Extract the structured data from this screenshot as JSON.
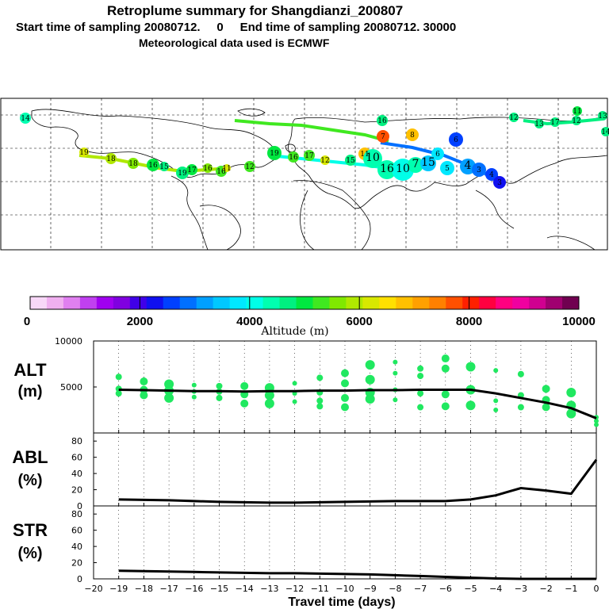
{
  "header": {
    "title": "Retroplume summary for Shangdianzi_200807",
    "sampling": "Start time of sampling 20080712.     0     End time of sampling 20080712. 30000",
    "met": "Meteorological data used is ECMWF"
  },
  "colorbar": {
    "ticks": [
      "0",
      "2000",
      "4000",
      "6000",
      "8000",
      "10000"
    ],
    "label": "Altitude (m)",
    "colors": [
      "#f8d8f8",
      "#f0b0f0",
      "#e080f0",
      "#c040f0",
      "#a000f0",
      "#8000e0",
      "#4000e8",
      "#1010f0",
      "#0040ff",
      "#0070ff",
      "#00a0ff",
      "#00c8ff",
      "#00e8ff",
      "#00ffe8",
      "#00ffb0",
      "#00f080",
      "#00e840",
      "#40e820",
      "#80e800",
      "#b0e800",
      "#d8e800",
      "#ffe000",
      "#ffc000",
      "#ffa000",
      "#ff8000",
      "#ff5000",
      "#ff2000",
      "#ff0040",
      "#ff0080",
      "#f000a0",
      "#d00090",
      "#a00070",
      "#700050"
    ]
  },
  "map": {
    "trajectory_labels": [
      "14",
      "19",
      "18",
      "18",
      "16",
      "15",
      "19",
      "17",
      "16",
      "16",
      "11",
      "12",
      "19",
      "16",
      "17",
      "12",
      "15",
      "11",
      "10",
      "16",
      "10",
      "7",
      "15",
      "6",
      "5",
      "6",
      "4",
      "3",
      "4",
      "3",
      "7",
      "8",
      "16",
      "11",
      "14",
      "12",
      "13",
      "17",
      "12",
      "13"
    ]
  },
  "chart_data": [
    {
      "type": "scatter",
      "name": "ALT",
      "ylabel": "ALT",
      "yunit": "(m)",
      "ylim": [
        0,
        10000
      ],
      "yticks": [
        "5000",
        "10000"
      ],
      "x": [
        -19,
        -18,
        -17,
        -16,
        -15,
        -14,
        -13,
        -12,
        -11,
        -10,
        -9,
        -8,
        -7,
        -6,
        -5,
        -4,
        -3,
        -2,
        -1,
        0
      ],
      "values": [
        4700,
        4650,
        4600,
        4550,
        4550,
        4500,
        4550,
        4550,
        4600,
        4600,
        4650,
        4650,
        4700,
        4700,
        4700,
        4300,
        3800,
        3300,
        2700,
        1600
      ],
      "points": [
        [
          -19,
          6100
        ],
        [
          -19,
          4800
        ],
        [
          -19,
          4300
        ],
        [
          -18,
          5600
        ],
        [
          -18,
          4700
        ],
        [
          -18,
          4100
        ],
        [
          -17,
          5300
        ],
        [
          -17,
          4600
        ],
        [
          -17,
          3800
        ],
        [
          -16,
          5200
        ],
        [
          -16,
          4500
        ],
        [
          -16,
          3900
        ],
        [
          -15,
          5100
        ],
        [
          -15,
          4500
        ],
        [
          -15,
          3800
        ],
        [
          -14,
          5100
        ],
        [
          -14,
          4200
        ],
        [
          -14,
          3200
        ],
        [
          -13,
          4900
        ],
        [
          -13,
          4100
        ],
        [
          -13,
          3200
        ],
        [
          -12,
          5400
        ],
        [
          -12,
          4300
        ],
        [
          -12,
          3400
        ],
        [
          -11,
          6000
        ],
        [
          -11,
          4400
        ],
        [
          -11,
          3500
        ],
        [
          -11,
          2900
        ],
        [
          -10,
          6500
        ],
        [
          -10,
          5400
        ],
        [
          -10,
          3800
        ],
        [
          -10,
          2800
        ],
        [
          -9,
          7400
        ],
        [
          -9,
          5800
        ],
        [
          -9,
          4400
        ],
        [
          -9,
          3700
        ],
        [
          -8,
          7700
        ],
        [
          -8,
          6500
        ],
        [
          -8,
          4700
        ],
        [
          -8,
          3600
        ],
        [
          -7,
          7000
        ],
        [
          -7,
          6200
        ],
        [
          -7,
          4300
        ],
        [
          -7,
          2800
        ],
        [
          -6,
          8100
        ],
        [
          -6,
          7000
        ],
        [
          -6,
          4200
        ],
        [
          -6,
          2900
        ],
        [
          -5,
          7200
        ],
        [
          -5,
          4700
        ],
        [
          -5,
          3000
        ],
        [
          -4,
          6800
        ],
        [
          -4,
          3500
        ],
        [
          -4,
          2500
        ],
        [
          -3,
          6400
        ],
        [
          -3,
          4100
        ],
        [
          -3,
          2800
        ],
        [
          -2,
          4800
        ],
        [
          -2,
          3600
        ],
        [
          -2,
          2800
        ],
        [
          -1,
          4400
        ],
        [
          -1,
          3000
        ],
        [
          -1,
          2100
        ],
        [
          0,
          1700
        ],
        [
          0,
          1300
        ],
        [
          0,
          900
        ]
      ]
    },
    {
      "type": "line",
      "name": "ABL",
      "ylabel": "ABL",
      "yunit": "(%)",
      "ylim": [
        0,
        90
      ],
      "yticks": [
        "0",
        "20",
        "40",
        "60",
        "80"
      ],
      "x": [
        -19,
        -18,
        -17,
        -16,
        -15,
        -14,
        -13,
        -12,
        -11,
        -10,
        -9,
        -8,
        -7,
        -6,
        -5,
        -4,
        -3,
        -2,
        -1,
        0
      ],
      "values": [
        8,
        7.5,
        7,
        6,
        5,
        4.5,
        4,
        4,
        4.5,
        5,
        5.5,
        6,
        6,
        6,
        8,
        13,
        22,
        19,
        15,
        57
      ]
    },
    {
      "type": "line",
      "name": "STR",
      "ylabel": "STR",
      "yunit": "(%)",
      "ylim": [
        0,
        90
      ],
      "yticks": [
        "0",
        "20",
        "40",
        "60",
        "80"
      ],
      "x": [
        -19,
        -18,
        -17,
        -16,
        -15,
        -14,
        -13,
        -12,
        -11,
        -10,
        -9,
        -8,
        -7,
        -6,
        -5,
        -4,
        -3,
        -2,
        -1,
        0
      ],
      "values": [
        10,
        9.5,
        9,
        8.5,
        8,
        7.5,
        7,
        7,
        6.5,
        6,
        5.5,
        4.5,
        3.5,
        2.5,
        1.5,
        0.5,
        0,
        0,
        0,
        0
      ],
      "xlabel": "Travel time (days)",
      "xticks": [
        "−20",
        "−19",
        "−18",
        "−17",
        "−16",
        "−15",
        "−14",
        "−13",
        "−12",
        "−11",
        "−10",
        "−9",
        "−8",
        "−7",
        "−6",
        "−5",
        "−4",
        "−3",
        "−2",
        "−1",
        "0"
      ]
    }
  ]
}
